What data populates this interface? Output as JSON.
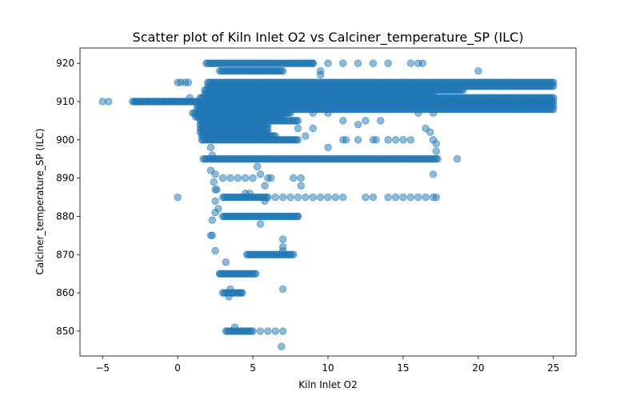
{
  "chart_data": {
    "type": "scatter",
    "title": "Scatter plot of Kiln Inlet O2 vs Calciner_temperature_SP (ILC)",
    "xlabel": "Kiln Inlet O2",
    "ylabel": "Calciner_temperature_SP (ILC)",
    "xlim": [
      -6.5,
      26.5
    ],
    "ylim": [
      843.5,
      924
    ],
    "xticks": [
      -5,
      0,
      5,
      10,
      15,
      20,
      25
    ],
    "yticks": [
      850,
      860,
      870,
      880,
      890,
      900,
      910,
      920
    ],
    "grid": false,
    "marker_color": "#1f77b4",
    "marker_alpha": 0.5,
    "series": [
      {
        "dense_bands": [
          {
            "y": 920,
            "x_from": 1.9,
            "x_to": 9.0
          },
          {
            "y": 918,
            "x_from": 2.8,
            "x_to": 7.0
          },
          {
            "y": 915,
            "x_from": 2.0,
            "x_to": 25.0
          },
          {
            "y": 914,
            "x_from": 2.0,
            "x_to": 25.0
          },
          {
            "y": 913,
            "x_from": 1.8,
            "x_to": 19.0
          },
          {
            "y": 912,
            "x_from": 1.8,
            "x_to": 17.0
          },
          {
            "y": 911,
            "x_from": 1.5,
            "x_to": 25.0
          },
          {
            "y": 910,
            "x_from": -3.0,
            "x_to": 25.0
          },
          {
            "y": 909,
            "x_from": 1.3,
            "x_to": 25.0
          },
          {
            "y": 908,
            "x_from": 1.3,
            "x_to": 25.0
          },
          {
            "y": 907,
            "x_from": 1.0,
            "x_to": 7.5
          },
          {
            "y": 906,
            "x_from": 1.2,
            "x_to": 7.0
          },
          {
            "y": 905,
            "x_from": 1.5,
            "x_to": 8.0
          },
          {
            "y": 904,
            "x_from": 1.5,
            "x_to": 6.0
          },
          {
            "y": 903,
            "x_from": 1.5,
            "x_to": 6.0
          },
          {
            "y": 902,
            "x_from": 1.5,
            "x_to": 6.0
          },
          {
            "y": 901,
            "x_from": 1.6,
            "x_to": 6.5
          },
          {
            "y": 900,
            "x_from": 1.6,
            "x_to": 8.0
          },
          {
            "y": 895,
            "x_from": 1.7,
            "x_to": 17.3
          },
          {
            "y": 885,
            "x_from": 3.0,
            "x_to": 6.0
          },
          {
            "y": 880,
            "x_from": 3.0,
            "x_to": 8.0
          },
          {
            "y": 870,
            "x_from": 4.6,
            "x_to": 7.7
          },
          {
            "y": 865,
            "x_from": 2.8,
            "x_to": 5.2
          },
          {
            "y": 860,
            "x_from": 3.0,
            "x_to": 4.3
          },
          {
            "y": 850,
            "x_from": 3.2,
            "x_to": 5.0
          }
        ],
        "points": [
          [
            -5.0,
            910
          ],
          [
            -4.6,
            910
          ],
          [
            -2.8,
            910
          ],
          [
            -2.5,
            910
          ],
          [
            -2.0,
            910
          ],
          [
            -1.5,
            910
          ],
          [
            -1.0,
            910
          ],
          [
            -0.5,
            910
          ],
          [
            0.0,
            910
          ],
          [
            0.5,
            910
          ],
          [
            0.8,
            911
          ],
          [
            0.0,
            915
          ],
          [
            0.2,
            915
          ],
          [
            0.5,
            915
          ],
          [
            0.7,
            915
          ],
          [
            0.0,
            885
          ],
          [
            9.0,
            920
          ],
          [
            10.0,
            920
          ],
          [
            11.0,
            920
          ],
          [
            12.0,
            920
          ],
          [
            13.0,
            920
          ],
          [
            14.0,
            920
          ],
          [
            15.5,
            920
          ],
          [
            16.0,
            920
          ],
          [
            16.3,
            920
          ],
          [
            9.5,
            918
          ],
          [
            9.5,
            917
          ],
          [
            20.0,
            918
          ],
          [
            9.0,
            907
          ],
          [
            10.0,
            907
          ],
          [
            11.0,
            905
          ],
          [
            12.0,
            904
          ],
          [
            12.5,
            905
          ],
          [
            13.5,
            905
          ],
          [
            16.0,
            907
          ],
          [
            17.0,
            907
          ],
          [
            16.5,
            903
          ],
          [
            16.8,
            902
          ],
          [
            17.0,
            900
          ],
          [
            17.2,
            899
          ],
          [
            17.2,
            897
          ],
          [
            8.0,
            903
          ],
          [
            8.5,
            901
          ],
          [
            9.0,
            903
          ],
          [
            10.0,
            898
          ],
          [
            11.0,
            900
          ],
          [
            11.2,
            900
          ],
          [
            12.0,
            900
          ],
          [
            13.0,
            900
          ],
          [
            13.2,
            900
          ],
          [
            14.0,
            900
          ],
          [
            14.5,
            900
          ],
          [
            15.0,
            900
          ],
          [
            15.5,
            900
          ],
          [
            17.0,
            891
          ],
          [
            18.6,
            895
          ],
          [
            2.2,
            898
          ],
          [
            2.3,
            896
          ],
          [
            2.2,
            892
          ],
          [
            2.5,
            891
          ],
          [
            2.4,
            889
          ],
          [
            2.5,
            887
          ],
          [
            2.6,
            887
          ],
          [
            2.5,
            884
          ],
          [
            2.5,
            881
          ],
          [
            2.7,
            882
          ],
          [
            2.3,
            879
          ],
          [
            2.2,
            875
          ],
          [
            2.3,
            875
          ],
          [
            2.5,
            871
          ],
          [
            2.8,
            865
          ],
          [
            3.2,
            868
          ],
          [
            3.5,
            861
          ],
          [
            3.4,
            859
          ],
          [
            3.8,
            851
          ],
          [
            3.0,
            890
          ],
          [
            3.5,
            890
          ],
          [
            4.0,
            890
          ],
          [
            4.5,
            890
          ],
          [
            5.0,
            890
          ],
          [
            5.3,
            893
          ],
          [
            5.5,
            891
          ],
          [
            5.8,
            888
          ],
          [
            6.0,
            890
          ],
          [
            6.2,
            890
          ],
          [
            6.5,
            885
          ],
          [
            7.0,
            885
          ],
          [
            7.5,
            885
          ],
          [
            8.0,
            885
          ],
          [
            8.5,
            885
          ],
          [
            9.0,
            885
          ],
          [
            9.5,
            885
          ],
          [
            10.0,
            885
          ],
          [
            10.5,
            885
          ],
          [
            11.0,
            885
          ],
          [
            12.5,
            885
          ],
          [
            13.0,
            885
          ],
          [
            14.0,
            885
          ],
          [
            14.5,
            885
          ],
          [
            15.0,
            885
          ],
          [
            15.5,
            885
          ],
          [
            16.0,
            885
          ],
          [
            16.5,
            885
          ],
          [
            17.0,
            885
          ],
          [
            17.2,
            885
          ],
          [
            7.7,
            890
          ],
          [
            8.2,
            890
          ],
          [
            8.2,
            888
          ],
          [
            8.0,
            880
          ],
          [
            5.5,
            878
          ],
          [
            5.8,
            884
          ],
          [
            4.5,
            886
          ],
          [
            4.8,
            886
          ],
          [
            7.0,
            874
          ],
          [
            7.0,
            872
          ],
          [
            7.0,
            871
          ],
          [
            4.2,
            860
          ],
          [
            7.0,
            861
          ],
          [
            5.5,
            850
          ],
          [
            6.0,
            850
          ],
          [
            6.5,
            850
          ],
          [
            7.0,
            850
          ],
          [
            6.9,
            846
          ]
        ]
      }
    ]
  }
}
